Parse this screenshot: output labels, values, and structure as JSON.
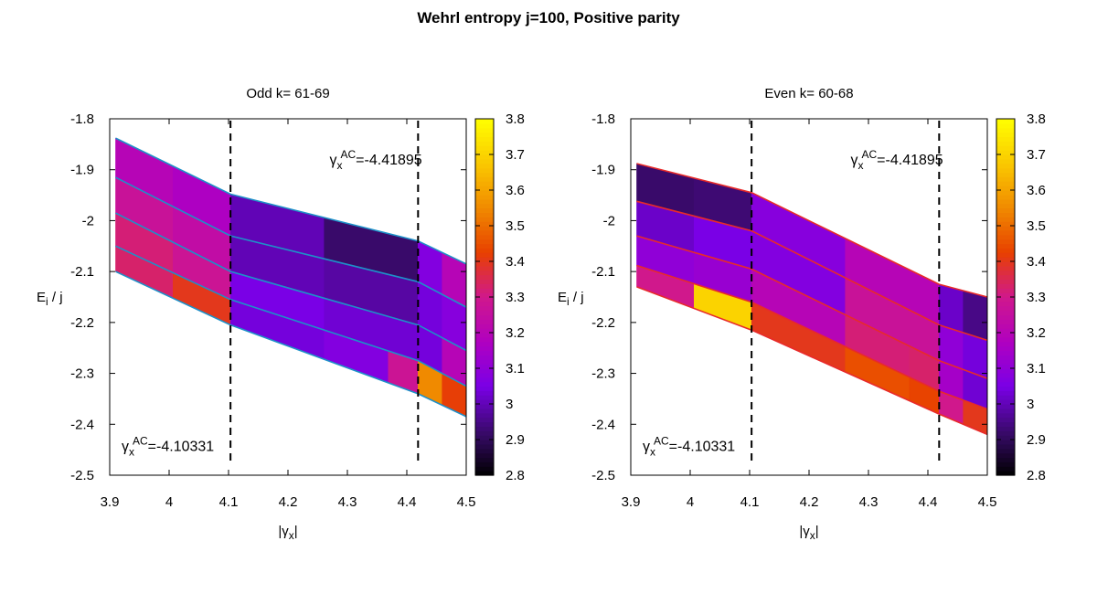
{
  "figure": {
    "title": "Wehrl entropy j=100, Positive parity"
  },
  "colorbar": {
    "min": 2.8,
    "max": 3.8,
    "ticks": [
      2.8,
      2.9,
      3.0,
      3.1,
      3.2,
      3.3,
      3.4,
      3.5,
      3.6,
      3.7,
      3.8
    ],
    "tick_labels": [
      "2.8",
      "2.9",
      "3",
      "3.1",
      "3.2",
      "3.3",
      "3.4",
      "3.5",
      "3.6",
      "3.7",
      "3.8"
    ],
    "palette": [
      "#000000",
      "#3b0a6e",
      "#7a00e6",
      "#b000c0",
      "#d0188c",
      "#e84000",
      "#f08a00",
      "#fac800",
      "#ffff00"
    ]
  },
  "chart_data": [
    {
      "type": "heatmap",
      "title": "Odd k= 61-69",
      "xlabel": "|γx|",
      "ylabel": "Ei / j",
      "xlim": [
        3.9,
        4.5
      ],
      "ylim": [
        -2.5,
        -1.8
      ],
      "xticks": [
        3.9,
        4.0,
        4.1,
        4.2,
        4.3,
        4.4,
        4.5
      ],
      "xtick_labels": [
        "3.9",
        "4",
        "4.1",
        "4.2",
        "4.3",
        "4.4",
        "4.5"
      ],
      "yticks": [
        -2.5,
        -2.4,
        -2.3,
        -2.2,
        -2.1,
        -2.0,
        -1.9,
        -1.8
      ],
      "ytick_labels": [
        "-2.5",
        "-2.4",
        "-2.3",
        "-2.2",
        "-2.1",
        "-2",
        "-1.9",
        "-1.8"
      ],
      "line_color": "#1e90c8",
      "vlines": [
        4.10331,
        4.41895
      ],
      "annotations": [
        {
          "text": "-4.41895",
          "x": 4.27,
          "y": -1.89
        },
        {
          "text": "-4.10331",
          "x": 3.92,
          "y": -2.452
        }
      ],
      "x_nodes": [
        3.91,
        4.10331,
        4.41895,
        4.5
      ],
      "levels": [
        [
          -1.838,
          -1.948,
          -2.04,
          -2.085
        ],
        [
          -1.915,
          -2.03,
          -2.12,
          -2.17
        ],
        [
          -1.985,
          -2.1,
          -2.205,
          -2.255
        ],
        [
          -2.05,
          -2.155,
          -2.275,
          -2.325
        ],
        [
          -2.1,
          -2.205,
          -2.34,
          -2.385
        ]
      ],
      "band_values": [
        [
          3.2,
          3.17,
          3.0,
          2.92,
          2.92,
          3.07,
          3.2
        ],
        [
          3.27,
          3.24,
          3.0,
          2.98,
          2.98,
          3.04,
          3.08
        ],
        [
          3.32,
          3.28,
          3.05,
          3.03,
          3.03,
          3.04,
          3.2
        ],
        [
          3.33,
          3.4,
          3.04,
          3.07,
          3.28,
          3.55,
          3.42
        ]
      ]
    },
    {
      "type": "heatmap",
      "title": "Even k= 60-68",
      "xlabel": "|γx|",
      "ylabel": "Ei / j",
      "xlim": [
        3.9,
        4.5
      ],
      "ylim": [
        -2.5,
        -1.8
      ],
      "xticks": [
        3.9,
        4.0,
        4.1,
        4.2,
        4.3,
        4.4,
        4.5
      ],
      "xtick_labels": [
        "3.9",
        "4",
        "4.1",
        "4.2",
        "4.3",
        "4.4",
        "4.5"
      ],
      "yticks": [
        -2.5,
        -2.4,
        -2.3,
        -2.2,
        -2.1,
        -2.0,
        -1.9,
        -1.8
      ],
      "ytick_labels": [
        "-2.5",
        "-2.4",
        "-2.3",
        "-2.2",
        "-2.1",
        "-2",
        "-1.9",
        "-1.8"
      ],
      "line_color": "#e82a2a",
      "vlines": [
        4.10331,
        4.41895
      ],
      "annotations": [
        {
          "text": "-4.41895",
          "x": 4.27,
          "y": -1.89
        },
        {
          "text": "-4.10331",
          "x": 3.92,
          "y": -2.452
        }
      ],
      "x_nodes": [
        3.91,
        4.10331,
        4.41895,
        4.5
      ],
      "levels": [
        [
          -1.888,
          -1.945,
          -2.125,
          -2.15
        ],
        [
          -1.962,
          -2.02,
          -2.205,
          -2.235
        ],
        [
          -2.03,
          -2.095,
          -2.275,
          -2.31
        ],
        [
          -2.088,
          -2.16,
          -2.335,
          -2.37
        ],
        [
          -2.13,
          -2.215,
          -2.38,
          -2.42
        ]
      ],
      "band_values": [
        [
          2.92,
          2.93,
          3.08,
          3.2,
          3.2,
          3.02,
          2.95
        ],
        [
          3.02,
          3.05,
          3.07,
          3.27,
          3.27,
          3.1,
          3.04
        ],
        [
          3.1,
          3.12,
          3.2,
          3.32,
          3.33,
          3.15,
          3.03
        ],
        [
          3.3,
          3.7,
          3.4,
          3.45,
          3.43,
          3.3,
          3.4
        ]
      ]
    }
  ]
}
